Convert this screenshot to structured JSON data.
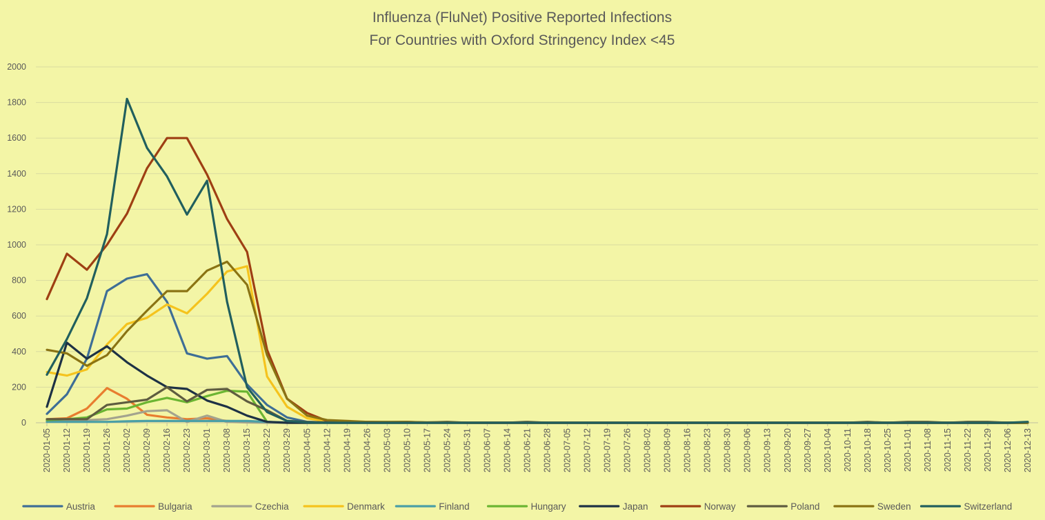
{
  "chart_data": {
    "type": "line",
    "title": "Influenza (FluNet) Positive Reported Infections",
    "subtitle": "For Countries with Oxford Stringency Index <45",
    "xlabel": "",
    "ylabel": "",
    "ylim": [
      0,
      2000
    ],
    "y_ticks": [
      0,
      200,
      400,
      600,
      800,
      1000,
      1200,
      1400,
      1600,
      1800,
      2000
    ],
    "grid": "horizontal",
    "legend_position": "bottom",
    "background_color": "#f3f5a6",
    "categories": [
      "2020-01-05",
      "2020-01-12",
      "2020-01-19",
      "2020-01-26",
      "2020-02-02",
      "2020-02-09",
      "2020-02-16",
      "2020-02-23",
      "2020-03-01",
      "2020-03-08",
      "2020-03-15",
      "2020-03-22",
      "2020-03-29",
      "2020-04-05",
      "2020-04-12",
      "2020-04-19",
      "2020-04-26",
      "2020-05-03",
      "2020-05-10",
      "2020-05-17",
      "2020-05-24",
      "2020-05-31",
      "2020-06-07",
      "2020-06-14",
      "2020-06-21",
      "2020-06-28",
      "2020-07-05",
      "2020-07-12",
      "2020-07-19",
      "2020-07-26",
      "2020-08-02",
      "2020-08-09",
      "2020-08-16",
      "2020-08-23",
      "2020-08-30",
      "2020-09-06",
      "2020-09-13",
      "2020-09-20",
      "2020-09-27",
      "2020-10-04",
      "2020-10-11",
      "2020-10-18",
      "2020-10-25",
      "2020-11-01",
      "2020-11-08",
      "2020-11-15",
      "2020-11-22",
      "2020-11-29",
      "2020-12-06",
      "2020-12-13"
    ],
    "series": [
      {
        "name": "Austria",
        "color": "#3e6e96",
        "values": [
          50,
          160,
          360,
          740,
          810,
          835,
          680,
          390,
          360,
          375,
          215,
          100,
          30,
          5,
          2,
          1,
          0,
          0,
          0,
          0,
          0,
          0,
          0,
          0,
          0,
          0,
          0,
          0,
          0,
          0,
          0,
          0,
          0,
          0,
          0,
          0,
          0,
          0,
          0,
          0,
          0,
          0,
          0,
          0,
          0,
          0,
          0,
          0,
          0,
          0
        ]
      },
      {
        "name": "Bulgaria",
        "color": "#e87d2f",
        "values": [
          20,
          25,
          80,
          195,
          135,
          45,
          30,
          20,
          25,
          10,
          5,
          2,
          0,
          0,
          0,
          0,
          0,
          0,
          0,
          0,
          0,
          0,
          0,
          0,
          0,
          0,
          0,
          0,
          0,
          0,
          0,
          0,
          0,
          0,
          0,
          0,
          0,
          0,
          0,
          0,
          0,
          0,
          0,
          0,
          0,
          0,
          0,
          0,
          0,
          0
        ]
      },
      {
        "name": "Czechia",
        "color": "#a3a38e",
        "values": [
          10,
          15,
          15,
          20,
          40,
          65,
          70,
          5,
          40,
          5,
          2,
          0,
          0,
          0,
          0,
          0,
          0,
          0,
          0,
          0,
          0,
          0,
          0,
          0,
          0,
          0,
          0,
          0,
          0,
          0,
          0,
          0,
          0,
          0,
          0,
          0,
          0,
          0,
          0,
          0,
          0,
          0,
          0,
          0,
          0,
          0,
          0,
          0,
          0,
          0
        ]
      },
      {
        "name": "Denmark",
        "color": "#f5c31d",
        "values": [
          285,
          265,
          300,
          440,
          555,
          590,
          665,
          615,
          725,
          850,
          880,
          260,
          90,
          25,
          8,
          4,
          2,
          1,
          0,
          0,
          0,
          0,
          0,
          0,
          0,
          0,
          0,
          0,
          0,
          0,
          0,
          0,
          0,
          0,
          0,
          0,
          0,
          0,
          0,
          0,
          0,
          0,
          0,
          0,
          0,
          0,
          0,
          0,
          0,
          0
        ]
      },
      {
        "name": "Finland",
        "color": "#4a9fa6",
        "values": [
          5,
          5,
          5,
          5,
          8,
          10,
          10,
          10,
          10,
          10,
          10,
          5,
          2,
          0,
          0,
          0,
          0,
          0,
          0,
          0,
          0,
          0,
          0,
          0,
          0,
          0,
          0,
          0,
          0,
          0,
          0,
          0,
          0,
          0,
          0,
          0,
          0,
          0,
          0,
          0,
          0,
          0,
          0,
          0,
          0,
          0,
          0,
          0,
          0,
          0
        ]
      },
      {
        "name": "Hungary",
        "color": "#6bb532",
        "values": [
          15,
          20,
          30,
          75,
          80,
          115,
          140,
          115,
          150,
          180,
          175,
          5,
          0,
          0,
          0,
          0,
          0,
          0,
          0,
          0,
          0,
          0,
          0,
          0,
          0,
          0,
          0,
          0,
          0,
          0,
          0,
          0,
          0,
          0,
          0,
          0,
          0,
          0,
          0,
          0,
          0,
          0,
          0,
          0,
          0,
          0,
          0,
          0,
          0,
          0
        ]
      },
      {
        "name": "Japan",
        "color": "#1d3145",
        "values": [
          90,
          450,
          360,
          430,
          340,
          265,
          200,
          190,
          125,
          90,
          40,
          5,
          0,
          0,
          0,
          0,
          0,
          0,
          0,
          0,
          0,
          0,
          0,
          0,
          0,
          0,
          0,
          0,
          0,
          0,
          0,
          0,
          0,
          0,
          0,
          0,
          0,
          0,
          0,
          0,
          0,
          0,
          0,
          0,
          0,
          0,
          0,
          0,
          0,
          0
        ]
      },
      {
        "name": "Norway",
        "color": "#9e3f13",
        "values": [
          695,
          950,
          860,
          1000,
          1175,
          1430,
          1600,
          1600,
          1395,
          1145,
          960,
          410,
          135,
          55,
          10,
          5,
          5,
          3,
          5,
          1,
          1,
          0,
          0,
          0,
          0,
          0,
          0,
          0,
          0,
          0,
          0,
          0,
          0,
          0,
          0,
          0,
          0,
          0,
          0,
          0,
          0,
          0,
          0,
          0,
          0,
          0,
          0,
          0,
          0,
          0
        ]
      },
      {
        "name": "Poland",
        "color": "#5e5c40",
        "values": [
          20,
          20,
          20,
          100,
          115,
          130,
          200,
          120,
          185,
          190,
          120,
          70,
          10,
          5,
          2,
          2,
          2,
          2,
          2,
          2,
          5,
          0,
          0,
          0,
          5,
          0,
          0,
          0,
          0,
          0,
          0,
          0,
          0,
          0,
          0,
          0,
          0,
          0,
          0,
          0,
          0,
          5,
          0,
          5,
          5,
          0,
          5,
          5,
          0,
          0
        ]
      },
      {
        "name": "Sweden",
        "color": "#8a7313",
        "values": [
          410,
          390,
          320,
          380,
          515,
          630,
          740,
          740,
          855,
          905,
          775,
          380,
          135,
          40,
          15,
          10,
          5,
          5,
          5,
          2,
          2,
          0,
          0,
          0,
          0,
          0,
          0,
          0,
          0,
          0,
          0,
          0,
          0,
          0,
          0,
          0,
          0,
          0,
          0,
          0,
          0,
          0,
          0,
          0,
          0,
          0,
          0,
          0,
          0,
          0
        ]
      },
      {
        "name": "Switzerland",
        "color": "#215f5e",
        "values": [
          270,
          470,
          700,
          1060,
          1820,
          1545,
          1385,
          1170,
          1360,
          680,
          200,
          60,
          10,
          2,
          0,
          0,
          0,
          0,
          0,
          0,
          0,
          0,
          0,
          0,
          0,
          0,
          0,
          0,
          0,
          0,
          0,
          0,
          0,
          0,
          0,
          0,
          0,
          0,
          0,
          0,
          0,
          0,
          0,
          0,
          0,
          0,
          0,
          0,
          0,
          5
        ]
      }
    ]
  }
}
